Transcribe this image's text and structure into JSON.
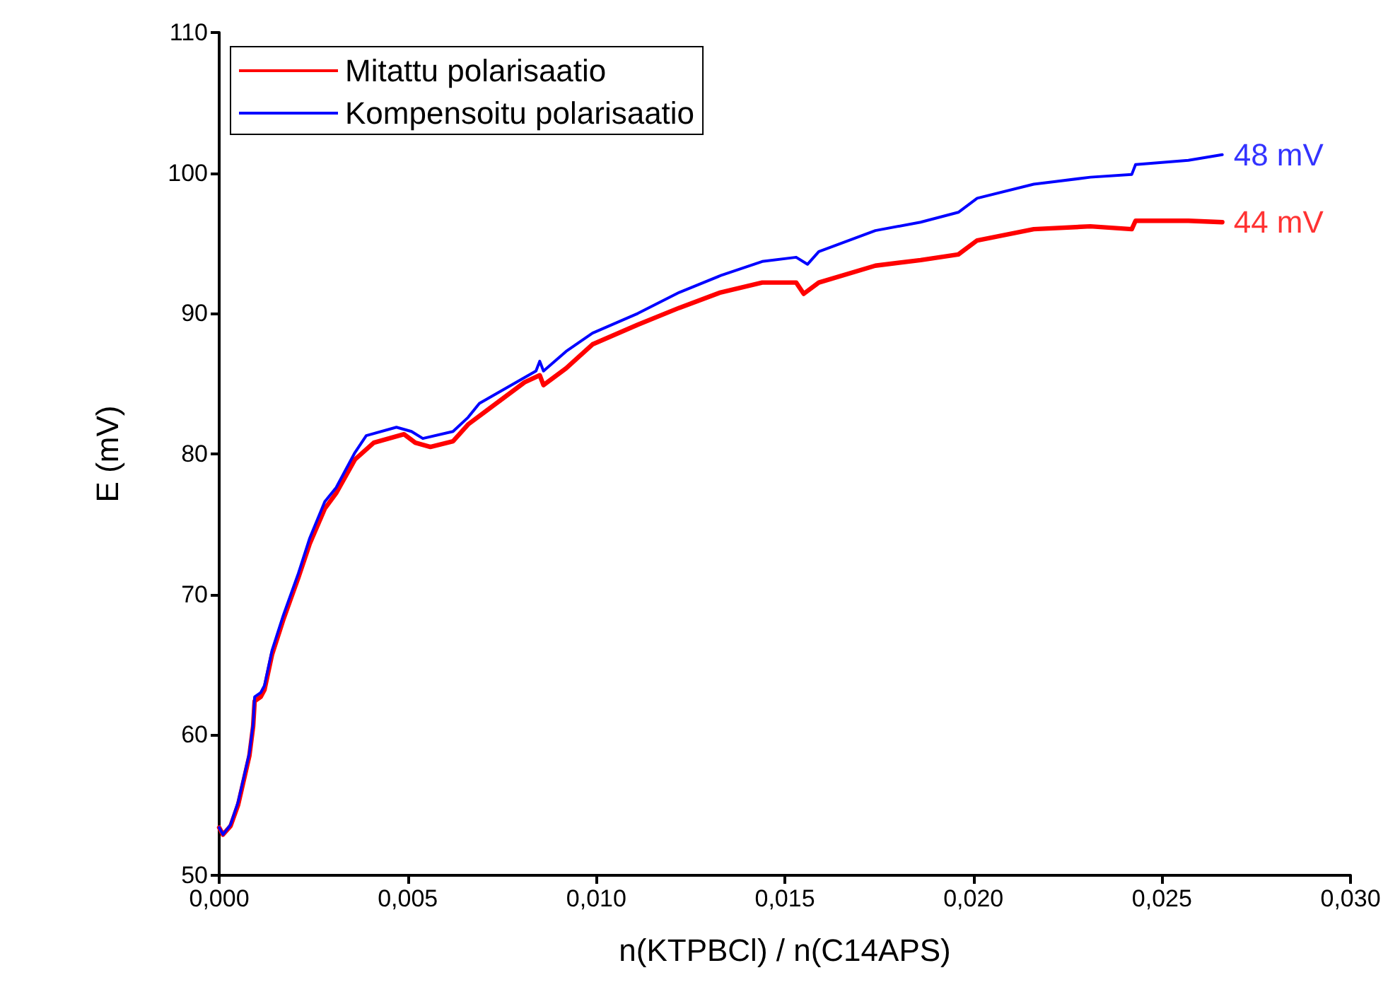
{
  "chart_data": {
    "type": "line",
    "xlabel": "n(KTPBCl) / n(C14APS)",
    "ylabel": "E (mV)",
    "xlim": [
      0,
      0.03
    ],
    "xticks": [
      {
        "value": 0,
        "label": "0,000"
      },
      {
        "value": 0.005,
        "label": "0,005"
      },
      {
        "value": 0.01,
        "label": "0,010"
      },
      {
        "value": 0.015,
        "label": "0,015"
      },
      {
        "value": 0.02,
        "label": "0,020"
      },
      {
        "value": 0.025,
        "label": "0,025"
      },
      {
        "value": 0.03,
        "label": "0,030"
      }
    ],
    "ylim": [
      50,
      110
    ],
    "yticks": [
      50,
      60,
      70,
      80,
      90,
      100,
      110
    ],
    "grid": false,
    "legend": "top left",
    "marker": "none",
    "line_style": "solid",
    "annotations": [
      {
        "text": "48 mV",
        "x": 0.0266,
        "y": 101.3
      },
      {
        "text": "44 mV",
        "x": 0.0266,
        "y": 96.5
      }
    ],
    "series": [
      {
        "name": "Mitattu polarisaatio",
        "color": "#ff0000",
        "x": [
          0,
          0.0001,
          0.0003,
          0.0005,
          0.0008,
          0.0009,
          0.00094,
          0.0011,
          0.0012,
          0.0014,
          0.0017,
          0.0021,
          0.0024,
          0.0028,
          0.0031,
          0.0036,
          0.0041,
          0.0049,
          0.0052,
          0.0056,
          0.0062,
          0.0066,
          0.0071,
          0.0081,
          0.0085,
          0.0086,
          0.0092,
          0.0099,
          0.0111,
          0.0122,
          0.0133,
          0.0144,
          0.0153,
          0.0155,
          0.0159,
          0.0174,
          0.0186,
          0.0196,
          0.0201,
          0.0216,
          0.0231,
          0.0242,
          0.0243,
          0.0257,
          0.0266
        ],
        "values": [
          53.4,
          52.9,
          53.5,
          55.0,
          58.5,
          60.6,
          62.4,
          62.7,
          63.2,
          65.7,
          68.2,
          71.2,
          73.6,
          76.1,
          77.2,
          79.6,
          80.8,
          81.4,
          80.8,
          80.5,
          80.9,
          82.1,
          83.1,
          85.1,
          85.6,
          84.9,
          86.1,
          87.8,
          89.2,
          90.4,
          91.5,
          92.2,
          92.2,
          91.4,
          92.2,
          93.4,
          93.8,
          94.2,
          95.2,
          96.0,
          96.2,
          96.0,
          96.6,
          96.6,
          96.5
        ]
      },
      {
        "name": "Kompensoitu polarisaatio",
        "color": "#0000ff",
        "x": [
          0,
          0.0001,
          0.0003,
          0.0005,
          0.0008,
          0.0009,
          0.00094,
          0.0011,
          0.0012,
          0.0014,
          0.0017,
          0.0021,
          0.0024,
          0.0028,
          0.0031,
          0.0036,
          0.0039,
          0.0047,
          0.0051,
          0.0054,
          0.0062,
          0.0066,
          0.0069,
          0.0084,
          0.0085,
          0.0086,
          0.0092,
          0.0099,
          0.0111,
          0.0122,
          0.0133,
          0.0144,
          0.0153,
          0.0156,
          0.0159,
          0.0174,
          0.0186,
          0.0196,
          0.0201,
          0.0216,
          0.0231,
          0.0242,
          0.0243,
          0.0257,
          0.0266
        ],
        "values": [
          53.4,
          52.9,
          53.6,
          55.2,
          58.7,
          60.8,
          62.7,
          63.0,
          63.5,
          66.0,
          68.5,
          71.5,
          74.0,
          76.6,
          77.6,
          80.1,
          81.3,
          81.9,
          81.6,
          81.1,
          81.6,
          82.6,
          83.6,
          85.9,
          86.6,
          85.9,
          87.3,
          88.6,
          90.0,
          91.5,
          92.7,
          93.7,
          94.0,
          93.5,
          94.4,
          95.9,
          96.5,
          97.2,
          98.2,
          99.2,
          99.7,
          99.9,
          100.6,
          100.9,
          101.3
        ]
      }
    ]
  }
}
